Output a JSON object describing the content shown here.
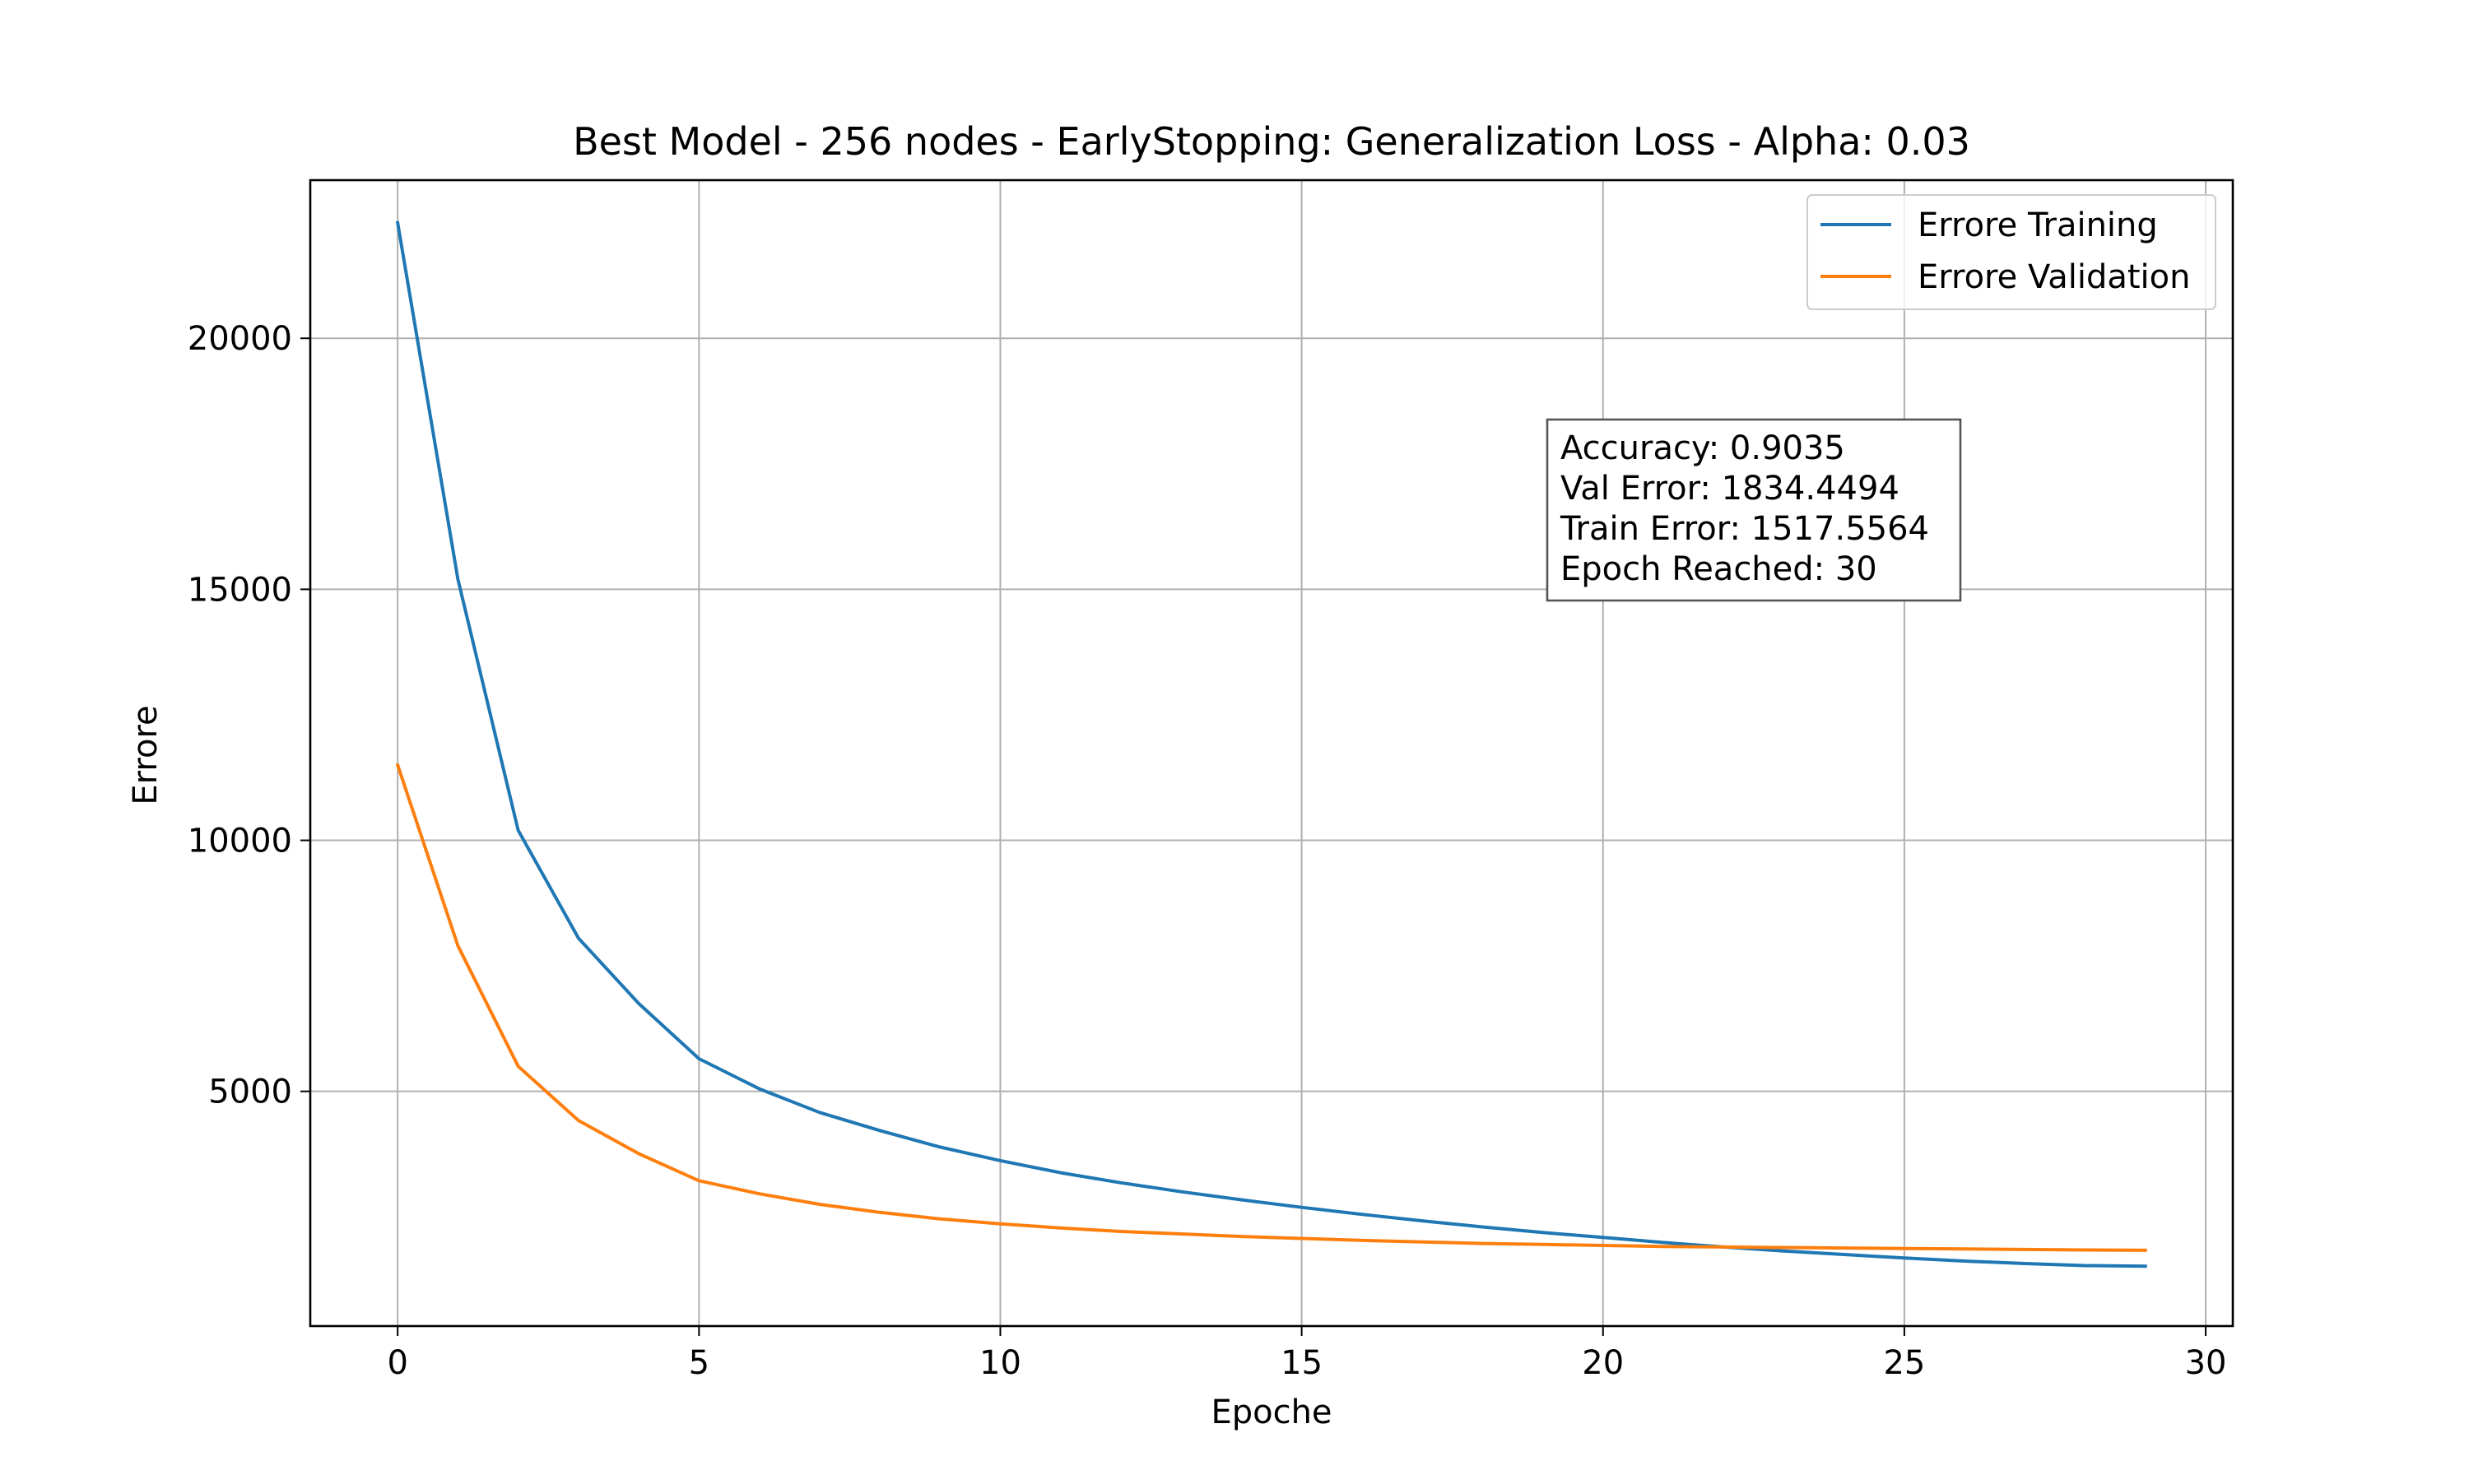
{
  "chart_data": {
    "type": "line",
    "title": "Best Model - 256 nodes - EarlyStopping: Generalization Loss - Alpha: 0.03",
    "xlabel": "Epoche",
    "ylabel": "Errore",
    "xlim": [
      -1.45,
      30.45
    ],
    "ylim": [
      325,
      23150
    ],
    "xticks": [
      0,
      5,
      10,
      15,
      20,
      25,
      30
    ],
    "yticks": [
      5000,
      10000,
      15000,
      20000
    ],
    "grid": true,
    "legend_position": "top-right",
    "x": [
      0,
      1,
      2,
      3,
      4,
      5,
      6,
      7,
      8,
      9,
      10,
      11,
      12,
      13,
      14,
      15,
      16,
      17,
      18,
      19,
      20,
      21,
      22,
      23,
      24,
      25,
      26,
      27,
      28,
      29
    ],
    "series": [
      {
        "name": "Errore Training",
        "color": "#1f77b4",
        "values": [
          22300,
          15200,
          10200,
          8050,
          6750,
          5650,
          5050,
          4580,
          4220,
          3890,
          3620,
          3380,
          3180,
          3000,
          2840,
          2690,
          2550,
          2420,
          2300,
          2190,
          2090,
          1990,
          1900,
          1820,
          1750,
          1680,
          1620,
          1570,
          1530,
          1517.56
        ]
      },
      {
        "name": "Errore Validation",
        "color": "#ff7f0e",
        "values": [
          11500,
          7900,
          5500,
          4420,
          3760,
          3220,
          2960,
          2750,
          2590,
          2460,
          2360,
          2280,
          2210,
          2160,
          2110,
          2070,
          2030,
          2000,
          1970,
          1950,
          1930,
          1910,
          1900,
          1890,
          1880,
          1870,
          1860,
          1850,
          1840,
          1834.45
        ]
      }
    ],
    "annotation": {
      "lines": [
        "Accuracy: 0.9035",
        "Val Error: 1834.4494",
        "Train Error: 1517.5564",
        "Epoch Reached: 30"
      ]
    }
  }
}
